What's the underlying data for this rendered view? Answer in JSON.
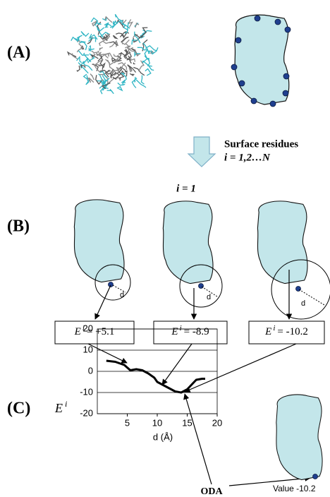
{
  "panels": {
    "a": "(A)",
    "b": "(B)",
    "c": "(C)"
  },
  "step": {
    "title": "Surface residues",
    "range": "i = 1,2…N"
  },
  "iteration": "i = 1",
  "distance_label": "d",
  "boxes": [
    {
      "symbol": "E",
      "sup": "i",
      "text": "= +5.1"
    },
    {
      "symbol": "E",
      "sup": "i",
      "text": "= -8.9"
    },
    {
      "symbol": "E",
      "sup": "i",
      "text": "= -10.2"
    }
  ],
  "oda": "ODA",
  "result": "Value -10.2",
  "chart_data": {
    "type": "line",
    "ylabel": {
      "symbol": "E",
      "sup": "i"
    },
    "xlabel": "d (Å)",
    "x": [
      1.5,
      3,
      4.5,
      5.5,
      6.5,
      7.5,
      8.5,
      9.5,
      10,
      11,
      12,
      13,
      14,
      15,
      16,
      16.5,
      17.5,
      18
    ],
    "series": [
      {
        "color": "#000000",
        "values": [
          5,
          4.5,
          3,
          0.5,
          1,
          0.5,
          -1,
          -3,
          -5,
          -6.5,
          -8,
          -9.5,
          -10,
          -8.5,
          -5.5,
          -4,
          -3.5,
          -3.5
        ]
      }
    ],
    "xlim": [
      0,
      20
    ],
    "xticks": [
      5,
      10,
      15,
      20
    ],
    "ylim": [
      -20,
      20
    ],
    "yticks": [
      -20,
      -10,
      0,
      10,
      20
    ],
    "grid": true
  }
}
